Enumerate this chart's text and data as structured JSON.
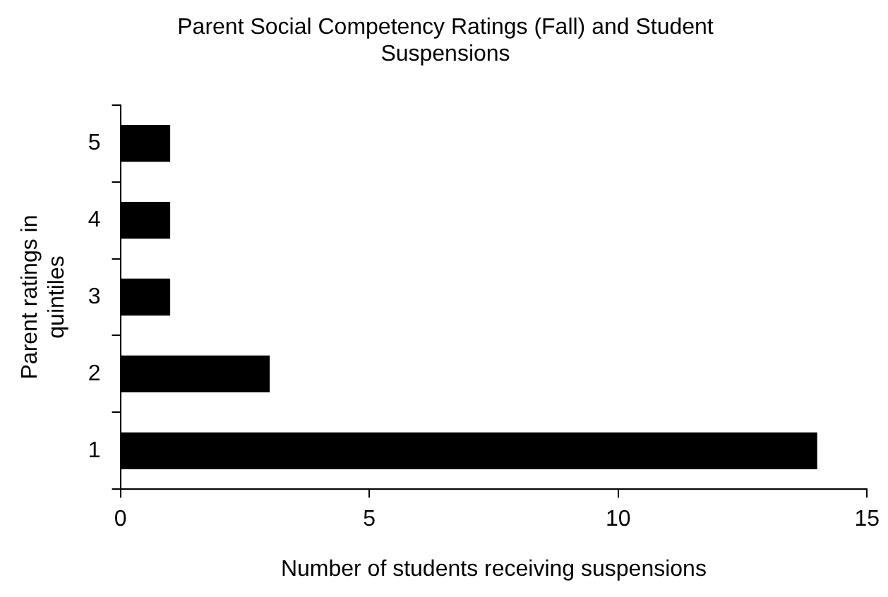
{
  "chart_data": {
    "type": "bar",
    "orientation": "horizontal",
    "title": "Parent Social Competency Ratings (Fall) and Student Suspensions",
    "xlabel": "Number of students receiving suspensions",
    "ylabel": "Parent ratings in quintiles",
    "categories": [
      "5",
      "4",
      "3",
      "2",
      "1"
    ],
    "series": [
      {
        "color": "#000000",
        "values": [
          1,
          1,
          1,
          3,
          14
        ]
      }
    ],
    "xlim": [
      0,
      15
    ],
    "xticks": [
      0,
      5,
      10,
      15
    ],
    "grid": false,
    "legend": false
  }
}
